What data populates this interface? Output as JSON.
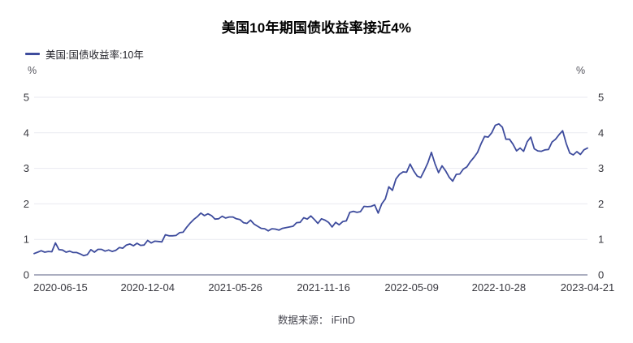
{
  "chart_data": {
    "type": "line",
    "title": "美国10年期国债收益率接近4%",
    "legend": "美国:国债收益率:10年",
    "unit_left": "%",
    "unit_right": "%",
    "source": "数据来源： iFinD",
    "ylim": [
      0,
      5
    ],
    "yticks": [
      0,
      1,
      2,
      3,
      4,
      5
    ],
    "xticks": [
      "2020-06-15",
      "2020-12-04",
      "2021-05-26",
      "2021-11-16",
      "2022-05-09",
      "2022-10-28",
      "2023-04-21"
    ],
    "grid": "horizontal-only",
    "legend_position": "top-left",
    "series": [
      {
        "name": "美国:国债收益率:10年",
        "start_date": "2020-04-24",
        "end_date": "2023-04-21",
        "step_days": 7,
        "values": [
          0.6,
          0.64,
          0.68,
          0.64,
          0.66,
          0.65,
          0.9,
          0.71,
          0.7,
          0.64,
          0.67,
          0.63,
          0.63,
          0.59,
          0.54,
          0.57,
          0.71,
          0.64,
          0.72,
          0.72,
          0.67,
          0.7,
          0.66,
          0.69,
          0.77,
          0.75,
          0.84,
          0.87,
          0.82,
          0.89,
          0.83,
          0.84,
          0.97,
          0.9,
          0.95,
          0.94,
          0.93,
          1.13,
          1.1,
          1.1,
          1.11,
          1.19,
          1.2,
          1.34,
          1.46,
          1.56,
          1.64,
          1.74,
          1.67,
          1.72,
          1.67,
          1.57,
          1.58,
          1.65,
          1.6,
          1.63,
          1.63,
          1.58,
          1.56,
          1.47,
          1.45,
          1.54,
          1.43,
          1.37,
          1.31,
          1.3,
          1.24,
          1.3,
          1.29,
          1.26,
          1.31,
          1.33,
          1.35,
          1.37,
          1.47,
          1.48,
          1.61,
          1.57,
          1.66,
          1.56,
          1.45,
          1.58,
          1.54,
          1.48,
          1.35,
          1.48,
          1.41,
          1.5,
          1.52,
          1.76,
          1.79,
          1.76,
          1.78,
          1.93,
          1.92,
          1.93,
          1.97,
          1.74,
          2.0,
          2.14,
          2.48,
          2.38,
          2.7,
          2.83,
          2.9,
          2.89,
          3.12,
          2.93,
          2.78,
          2.74,
          2.94,
          3.16,
          3.45,
          3.13,
          2.88,
          3.07,
          2.93,
          2.75,
          2.64,
          2.83,
          2.84,
          2.98,
          3.04,
          3.19,
          3.31,
          3.45,
          3.69,
          3.9,
          3.88,
          4.0,
          4.21,
          4.25,
          4.16,
          3.82,
          3.82,
          3.68,
          3.49,
          3.57,
          3.48,
          3.75,
          3.88,
          3.55,
          3.49,
          3.48,
          3.52,
          3.53,
          3.74,
          3.82,
          3.95,
          4.06,
          3.7,
          3.43,
          3.38,
          3.47,
          3.39,
          3.52,
          3.57
        ]
      }
    ],
    "colors": {
      "line": "#3e4c9d",
      "grid": "#e9eaf1",
      "axis_line": "#8f94ab",
      "tick_label": "#38383f",
      "title": "#000000",
      "background": "#ffffff"
    }
  }
}
